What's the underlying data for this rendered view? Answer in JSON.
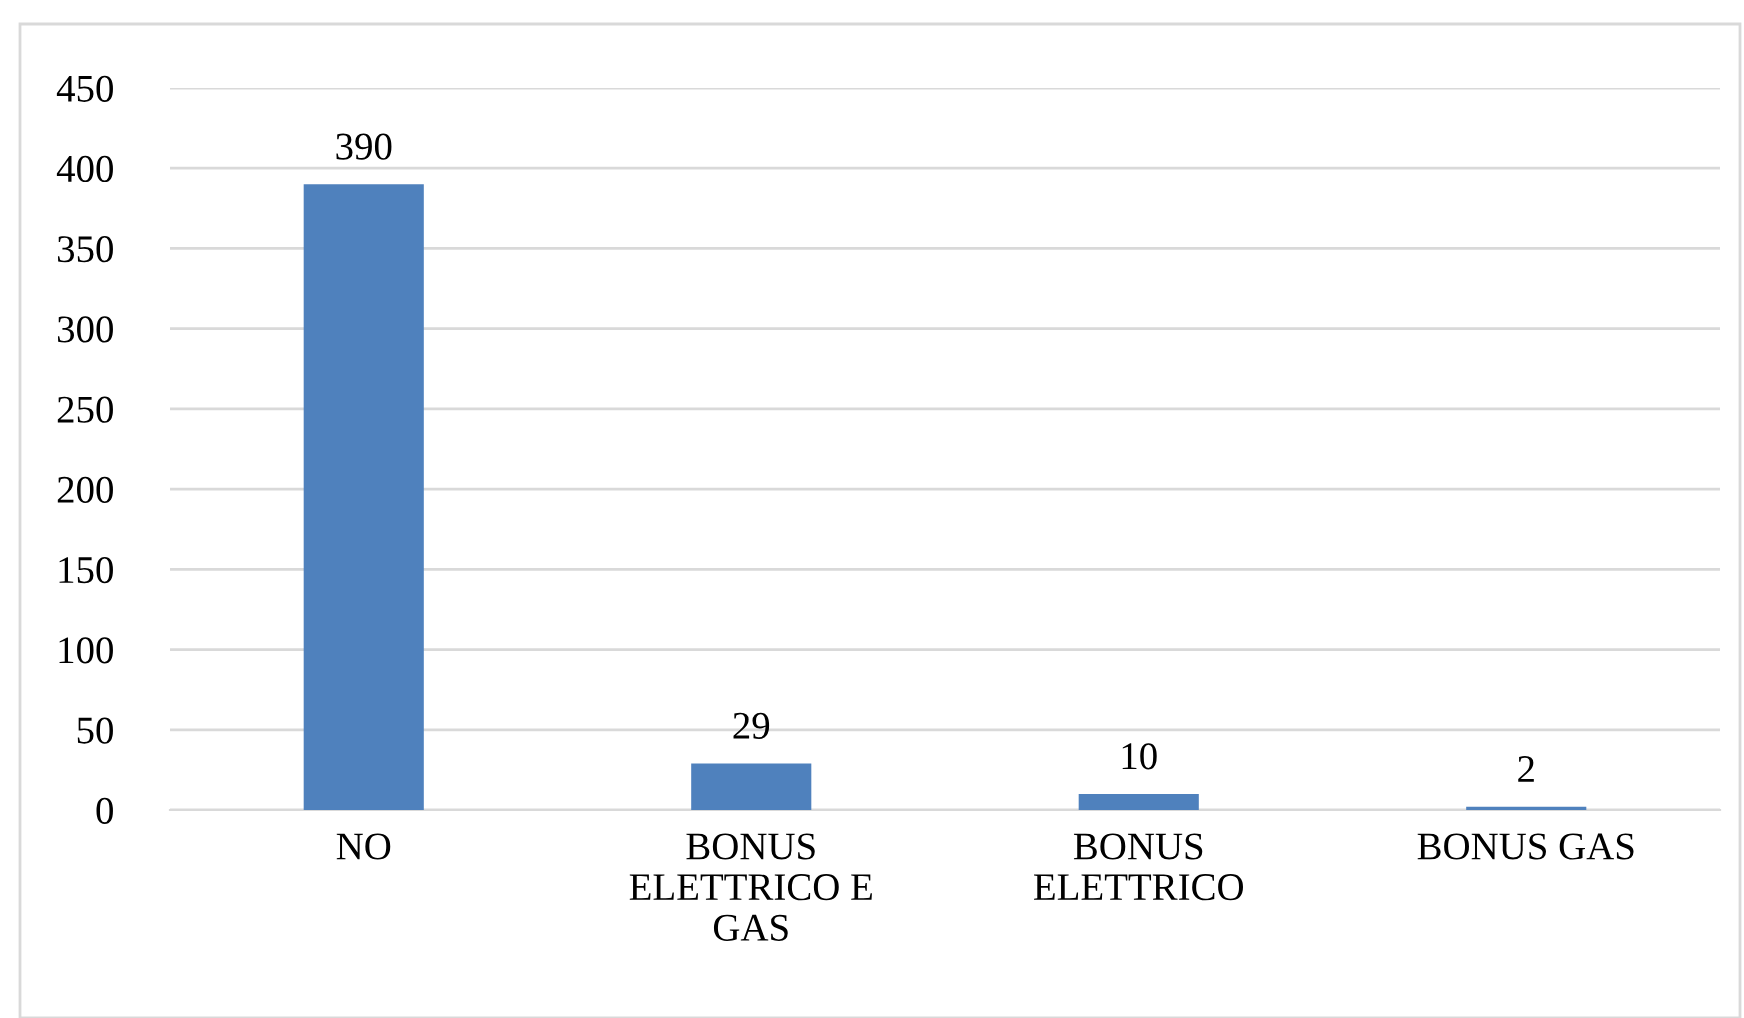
{
  "chart_data": {
    "type": "bar",
    "categories": [
      "NO",
      "BONUS ELETTRICO E GAS",
      "BONUS ELETTRICO",
      "BONUS GAS"
    ],
    "values": [
      390,
      29,
      10,
      2
    ],
    "color": "#4f81bd",
    "ylim": [
      0,
      450
    ],
    "yticks": [
      0,
      50,
      100,
      150,
      200,
      250,
      300,
      350,
      400,
      450
    ],
    "grid": "y",
    "data_labels": true
  }
}
